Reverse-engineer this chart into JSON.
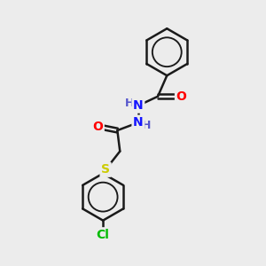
{
  "background_color": "#ececec",
  "bond_color": "#1a1a1a",
  "bond_width": 1.8,
  "atom_colors": {
    "N": "#1414ff",
    "O": "#ff0000",
    "S": "#cccc00",
    "Cl": "#00bb00",
    "H": "#5555cc",
    "C": "#1a1a1a"
  },
  "font_size": 10,
  "fig_size": [
    3.0,
    3.0
  ],
  "dpi": 100,
  "xlim": [
    0,
    10
  ],
  "ylim": [
    0,
    10
  ]
}
